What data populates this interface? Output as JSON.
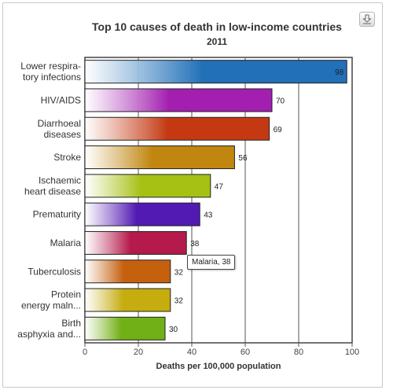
{
  "chart_data": {
    "type": "bar",
    "orientation": "horizontal",
    "title": "Top 10 causes of death in low-income countries",
    "subtitle": "2011",
    "xlabel": "Deaths per 100,000 population",
    "ylabel": "",
    "xlim": [
      0,
      100
    ],
    "x_ticks": [
      0,
      20,
      40,
      60,
      80,
      100
    ],
    "grid": true,
    "categories": [
      [
        "Lower respira-",
        "tory infections"
      ],
      [
        "HIV/AIDS"
      ],
      [
        "Diarrhoeal",
        "diseases"
      ],
      [
        "Stroke"
      ],
      [
        "Ischaemic",
        "heart disease"
      ],
      [
        "Prematurity"
      ],
      [
        "Malaria"
      ],
      [
        "Tuberculosis"
      ],
      [
        "Protein",
        "energy maln..."
      ],
      [
        "Birth",
        "asphyxia and..."
      ]
    ],
    "values": [
      98,
      70,
      69,
      56,
      47,
      43,
      38,
      32,
      32,
      30
    ],
    "colors": [
      "#2170b8",
      "#a31fb0",
      "#c43912",
      "#c0860f",
      "#a6c013",
      "#5219b3",
      "#b41a4c",
      "#c5600f",
      "#c5ac0f",
      "#72b017"
    ]
  },
  "tooltip": {
    "text": "Malaria, 38"
  },
  "export_button": {
    "icon": "download-icon"
  }
}
